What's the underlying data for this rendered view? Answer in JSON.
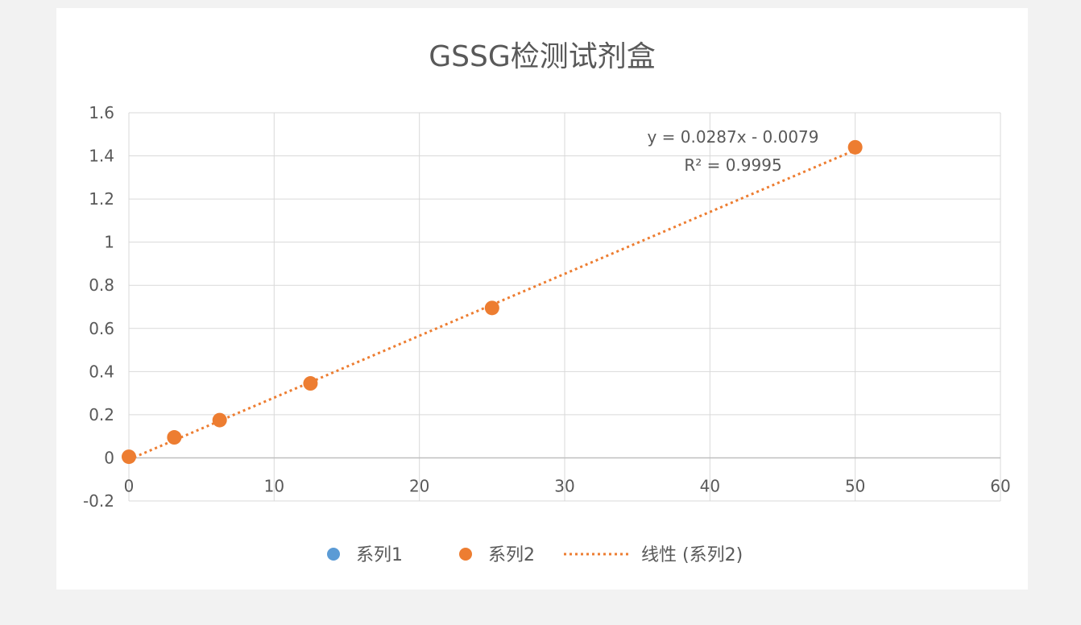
{
  "chart_data": {
    "type": "scatter",
    "title": "GSSG检测试剂盒",
    "xlabel": "",
    "ylabel": "",
    "xlim": [
      0,
      60
    ],
    "ylim": [
      -0.2,
      1.6
    ],
    "x_ticks": [
      0,
      10,
      20,
      30,
      40,
      50,
      60
    ],
    "y_ticks": [
      -0.2,
      0,
      0.2,
      0.4,
      0.6,
      0.8,
      1,
      1.2,
      1.4,
      1.6
    ],
    "x_tick_labels": [
      "0",
      "10",
      "20",
      "30",
      "40",
      "50",
      "60"
    ],
    "y_tick_labels": [
      "-0.2",
      "0",
      "0.2",
      "0.4",
      "0.6",
      "0.8",
      "1",
      "1.2",
      "1.4",
      "1.6"
    ],
    "grid": true,
    "legend_position": "bottom",
    "series": [
      {
        "name": "系列1",
        "color": "#5b9bd5",
        "x": [],
        "y": []
      },
      {
        "name": "系列2",
        "color": "#ed7d31",
        "x": [
          0,
          3.125,
          6.25,
          12.5,
          25,
          50
        ],
        "y": [
          0.005,
          0.095,
          0.175,
          0.345,
          0.695,
          1.44
        ]
      }
    ],
    "trendline": {
      "name": "线性 (系列2)",
      "series": "系列2",
      "slope": 0.0287,
      "intercept": -0.0079,
      "x_range": [
        0,
        50
      ],
      "color": "#ed7d31",
      "equation_label": "y = 0.0287x - 0.0079",
      "r2_label": "R² = 0.9995"
    },
    "legend": [
      {
        "label": "系列1",
        "marker": "circle",
        "color": "#5b9bd5"
      },
      {
        "label": "系列2",
        "marker": "circle",
        "color": "#ed7d31"
      },
      {
        "label": "线性 (系列2)",
        "marker": "dotted-line",
        "color": "#ed7d31"
      }
    ]
  }
}
